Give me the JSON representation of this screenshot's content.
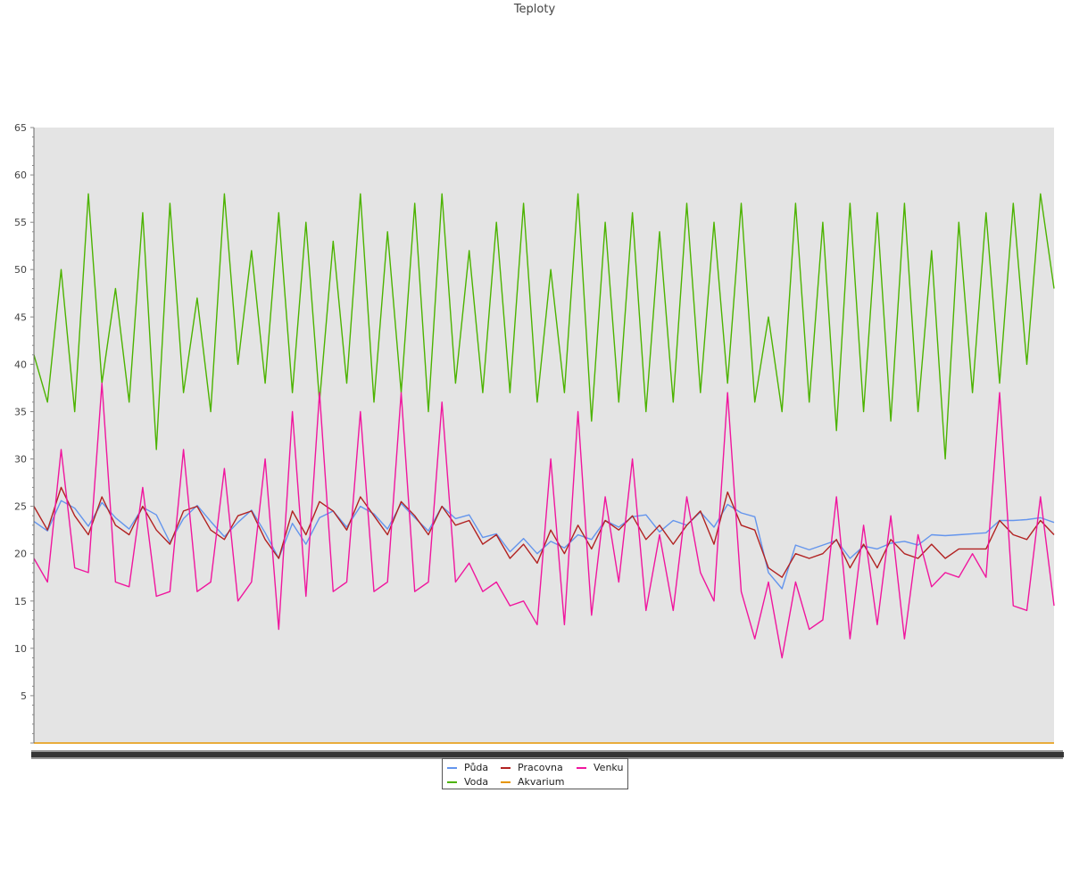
{
  "chart_data": {
    "type": "line",
    "title": "Teploty",
    "xlabel": "",
    "ylabel": "",
    "ylim": [
      0,
      65
    ],
    "y_ticks": [
      "5",
      "10",
      "15",
      "20",
      "25",
      "30",
      "35",
      "40",
      "45",
      "50",
      "55",
      "60",
      "65"
    ],
    "grid": false,
    "legend_position": "bottom",
    "plot_background": "#e4e4e4",
    "x": [
      0,
      4,
      8,
      12,
      16,
      20,
      24,
      28,
      32,
      36,
      40,
      44,
      48,
      52,
      56,
      60,
      64,
      68,
      72,
      76,
      80,
      84,
      88,
      92,
      96,
      100,
      104,
      108,
      112,
      116,
      120,
      124,
      128,
      132,
      136,
      140,
      144,
      148,
      152,
      156,
      160,
      164,
      168,
      172,
      176,
      180,
      184,
      188,
      192,
      196,
      200,
      204,
      208,
      212,
      216,
      220,
      224,
      228,
      232,
      236,
      240,
      244,
      248,
      252,
      256,
      260,
      264,
      268,
      272,
      276,
      280,
      284,
      288,
      292,
      296,
      300
    ],
    "series": [
      {
        "name": "Půda",
        "color": "#6495ed",
        "values": [
          23.4,
          22.4,
          25.6,
          24.8,
          22.9,
          25.4,
          23.8,
          22.6,
          24.9,
          24.1,
          21.2,
          23.7,
          25.1,
          23.4,
          21.8,
          23.3,
          24.6,
          22.2,
          19.5,
          23.2,
          21.0,
          23.8,
          24.5,
          22.8,
          25.0,
          24.2,
          22.6,
          25.3,
          23.8,
          22.4,
          25.0,
          23.7,
          24.1,
          21.7,
          22.1,
          20.2,
          21.6,
          20.0,
          21.3,
          20.6,
          22.0,
          21.5,
          23.5,
          22.8,
          23.9,
          24.1,
          22.3,
          23.5,
          23.0,
          24.4,
          22.8,
          25.2,
          24.3,
          23.9,
          18.0,
          16.3,
          20.9,
          20.4,
          20.9,
          21.4,
          19.5,
          20.8,
          20.5,
          21.1,
          21.3,
          20.9,
          22.0,
          21.9,
          22.0,
          22.1,
          22.2,
          23.5,
          23.5,
          23.6,
          23.8,
          23.3
        ]
      },
      {
        "name": "Voda",
        "color": "#4cb300",
        "values": [
          41.0,
          36.0,
          50.0,
          35.0,
          58.0,
          38.0,
          48.0,
          36.0,
          56.0,
          31.0,
          57.0,
          37.0,
          47.0,
          35.0,
          58.0,
          40.0,
          52.0,
          38.0,
          56.0,
          37.0,
          55.0,
          36.0,
          53.0,
          38.0,
          58.0,
          36.0,
          54.0,
          37.0,
          57.0,
          35.0,
          58.0,
          38.0,
          52.0,
          37.0,
          55.0,
          37.0,
          57.0,
          36.0,
          50.0,
          37.0,
          58.0,
          34.0,
          55.0,
          36.0,
          56.0,
          35.0,
          54.0,
          36.0,
          57.0,
          37.0,
          55.0,
          38.0,
          57.0,
          36.0,
          45.0,
          35.0,
          57.0,
          36.0,
          55.0,
          33.0,
          57.0,
          35.0,
          56.0,
          34.0,
          57.0,
          35.0,
          52.0,
          30.0,
          55.0,
          37.0,
          56.0,
          38.0,
          57.0,
          40.0,
          58.0,
          48.0
        ]
      },
      {
        "name": "Pracovna",
        "color": "#b22222",
        "values": [
          25.0,
          22.5,
          27.0,
          24.0,
          22.0,
          26.0,
          23.0,
          22.0,
          25.0,
          22.5,
          21.0,
          24.5,
          25.0,
          22.5,
          21.5,
          24.0,
          24.5,
          21.5,
          19.5,
          24.5,
          22.0,
          25.5,
          24.5,
          22.5,
          26.0,
          24.0,
          22.0,
          25.5,
          24.0,
          22.0,
          25.0,
          23.0,
          23.5,
          21.0,
          22.0,
          19.5,
          21.0,
          19.0,
          22.5,
          20.0,
          23.0,
          20.5,
          23.5,
          22.5,
          24.0,
          21.5,
          23.0,
          21.0,
          23.0,
          24.5,
          21.0,
          26.5,
          23.0,
          22.5,
          18.5,
          17.5,
          20.0,
          19.5,
          20.0,
          21.5,
          18.5,
          21.0,
          18.5,
          21.5,
          20.0,
          19.5,
          21.0,
          19.5,
          20.5,
          20.5,
          20.5,
          23.5,
          22.0,
          21.5,
          23.5,
          22.0
        ]
      },
      {
        "name": "Akvarium",
        "color": "#e69500",
        "values": [
          0,
          0,
          0,
          0,
          0,
          0,
          0,
          0,
          0,
          0,
          0,
          0,
          0,
          0,
          0,
          0,
          0,
          0,
          0,
          0,
          0,
          0,
          0,
          0,
          0,
          0,
          0,
          0,
          0,
          0,
          0,
          0,
          0,
          0,
          0,
          0,
          0,
          0,
          0,
          0,
          0,
          0,
          0,
          0,
          0,
          0,
          0,
          0,
          0,
          0,
          0,
          0,
          0,
          0,
          0,
          0,
          0,
          0,
          0,
          0,
          0,
          0,
          0,
          0,
          0,
          0,
          0,
          0,
          0,
          0,
          0,
          0,
          0,
          0,
          0,
          0
        ]
      },
      {
        "name": "Venku",
        "color": "#f0169e",
        "values": [
          19.5,
          17.0,
          31.0,
          18.5,
          18.0,
          38.0,
          17.0,
          16.5,
          27.0,
          15.5,
          16.0,
          31.0,
          16.0,
          17.0,
          29.0,
          15.0,
          17.0,
          30.0,
          12.0,
          35.0,
          15.5,
          37.0,
          16.0,
          17.0,
          35.0,
          16.0,
          17.0,
          37.0,
          16.0,
          17.0,
          36.0,
          17.0,
          19.0,
          16.0,
          17.0,
          14.5,
          15.0,
          12.5,
          30.0,
          12.5,
          35.0,
          13.5,
          26.0,
          17.0,
          30.0,
          14.0,
          22.0,
          14.0,
          26.0,
          18.0,
          15.0,
          37.0,
          16.0,
          11.0,
          17.0,
          9.0,
          17.0,
          12.0,
          13.0,
          26.0,
          11.0,
          23.0,
          12.5,
          24.0,
          11.0,
          22.0,
          16.5,
          18.0,
          17.5,
          20.0,
          17.5,
          37.0,
          14.5,
          14.0,
          26.0,
          14.5
        ]
      }
    ]
  }
}
